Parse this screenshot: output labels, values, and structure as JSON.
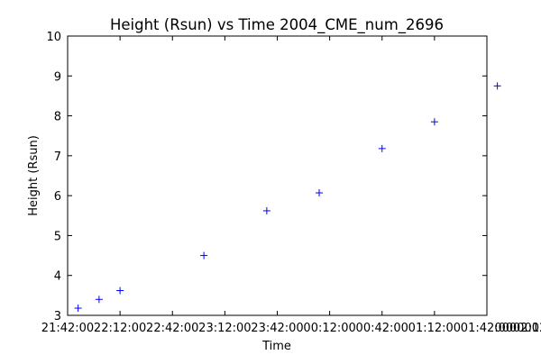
{
  "chart_data": {
    "type": "scatter",
    "title": "Height (Rsun) vs Time 2004_CME_num_2696",
    "xlabel": "Time",
    "ylabel": "Height (Rsun)",
    "x_time_range": [
      "21:42:00",
      "01:42:00"
    ],
    "x_tick_labels": [
      "21:42:00",
      "22:12:00",
      "22:42:00",
      "23:12:00",
      "23:42:00",
      "00:12:00",
      "00:42:00",
      "01:12:00",
      "01:42:00",
      "02:12:00",
      "02:42:00",
      "03:12:00",
      "03:42:00",
      "04:12:00",
      "04:42:00",
      "05:12:00",
      "05:42:00",
      "06:12:00"
    ],
    "x_trailing_label": "000000",
    "ylim": [
      3,
      10
    ],
    "y_ticks": [
      3,
      4,
      5,
      6,
      7,
      8,
      9,
      10
    ],
    "marker": "+",
    "marker_color": "#0000ff",
    "points": [
      {
        "time": "21:48:00",
        "height": 3.18
      },
      {
        "time": "22:00:00",
        "height": 3.4
      },
      {
        "time": "22:12:00",
        "height": 3.62
      },
      {
        "time": "23:00:00",
        "height": 4.5
      },
      {
        "time": "23:36:00",
        "height": 5.62
      },
      {
        "time": "00:06:00",
        "height": 6.07
      },
      {
        "time": "00:42:00",
        "height": 7.18
      },
      {
        "time": "01:12:00",
        "height": 7.85
      },
      {
        "time": "01:48:00",
        "height": 8.75
      }
    ],
    "grid": false
  }
}
